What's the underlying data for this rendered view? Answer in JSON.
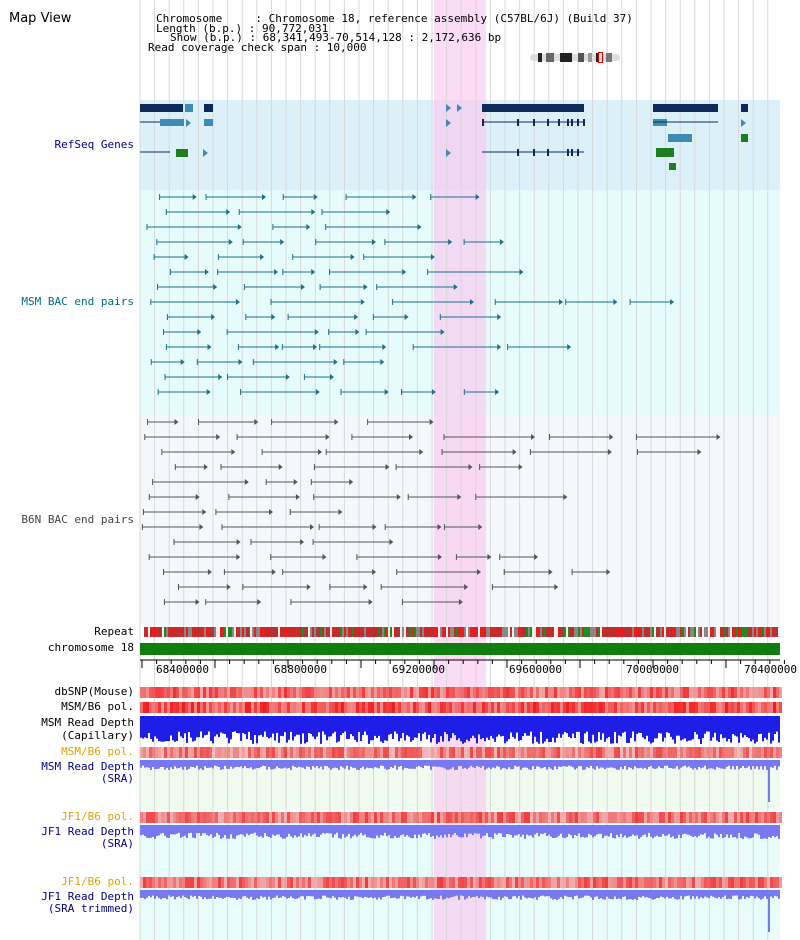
{
  "header": {
    "title": "Map View",
    "info_lines": [
      "Chromosome     : Chromosome 18, reference assembly (C57BL/6J) (Build 37)",
      "Length (b.p.) : 90,772,031",
      "Show (b.p.) : 68,341,493-70,514,128 : 2,172,636 bp",
      "Read coverage check span : 10,000"
    ]
  },
  "tracks": {
    "refseq": "RefSeq Genes",
    "msm_bac": "MSM BAC end pairs",
    "b6n_bac": "B6N BAC end pairs",
    "repeat": "Repeat",
    "chromosome": "chromosome 18",
    "dbsnp": "dbSNP(Mouse)",
    "msm_b6_pol_1": "MSM/B6 pol.",
    "msm_read_depth_cap_1": "MSM Read Depth",
    "msm_read_depth_cap_2": "(Capillary)",
    "msm_b6_pol_2": "MSM/B6 pol.",
    "msm_read_depth_sra_1": "MSM Read Depth",
    "msm_read_depth_sra_2": "(SRA)",
    "jf1_b6_pol_1": "JF1/B6 pol.",
    "jf1_read_depth_sra_1": "JF1 Read Depth",
    "jf1_read_depth_sra_2": "(SRA)",
    "jf1_b6_pol_2": "JF1/B6 pol.",
    "jf1_read_depth_trim_1": "JF1 Read Depth",
    "jf1_read_depth_trim_2": "(SRA trimmed)"
  },
  "axis_ticks": [
    "68400000",
    "68800000",
    "69200000",
    "69600000",
    "70000000",
    "70400000"
  ],
  "colors": {
    "refseq_bg": "#dcf0fa",
    "msm_bg": "#e6fcfc",
    "b6n_bg": "#f5f7fc",
    "highlight": "#fadcf5",
    "gene_dark": "#0d2a5a",
    "gene_mid": "#3c8cb4",
    "gene_green": "#1e7d1e",
    "msm_line": "#1e6e8c",
    "b6n_line": "#555555",
    "chrom_green": "#0f7d0f",
    "blue_depth": "#1e1ee6",
    "light_blue_depth": "#7878f0",
    "pol_red": "#f06464",
    "label_blue": "#00008b",
    "label_orange": "#e6a000",
    "label_teal": "#006b80"
  }
}
